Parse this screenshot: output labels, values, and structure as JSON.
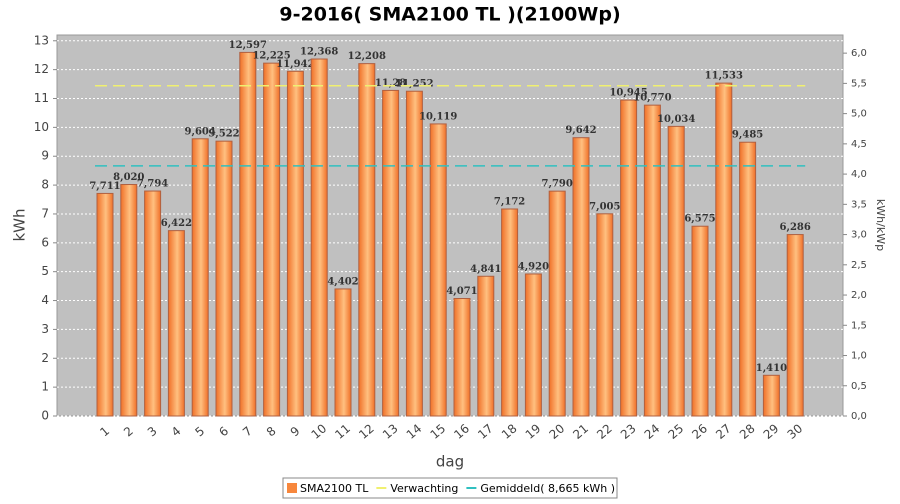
{
  "chart_data": {
    "type": "bar",
    "title": "9-2016( SMA2100 TL )(2100Wp)",
    "xlabel": "dag",
    "ylabel": "kWh",
    "y2label": "kWh/kWp",
    "categories": [
      "1",
      "2",
      "3",
      "4",
      "5",
      "6",
      "7",
      "8",
      "9",
      "10",
      "11",
      "12",
      "13",
      "14",
      "15",
      "16",
      "17",
      "18",
      "19",
      "20",
      "21",
      "22",
      "23",
      "24",
      "25",
      "26",
      "27",
      "28",
      "29",
      "30"
    ],
    "series": [
      {
        "name": "SMA2100 TL",
        "color": "#f7873c",
        "values": [
          7.711,
          8.02,
          7.794,
          6.422,
          9.604,
          9.522,
          12.597,
          12.225,
          11.942,
          12.368,
          4.402,
          12.208,
          11.28,
          11.252,
          10.119,
          4.071,
          4.841,
          7.172,
          4.92,
          7.79,
          9.642,
          7.005,
          10.945,
          10.77,
          10.034,
          6.575,
          11.533,
          9.485,
          1.41,
          6.286
        ],
        "value_labels": [
          "7,711",
          "8,020",
          "7,794",
          "6,422",
          "9,604",
          "9,522",
          "12,597",
          "12,225",
          "11,942",
          "12,368",
          "4,402",
          "12,208",
          "11,28",
          "11,252",
          "10,119",
          "4,071",
          "4,841",
          "7,172",
          "4,920",
          "7,790",
          "9,642",
          "7,005",
          "10,945",
          "10,770",
          "10,034",
          "6,575",
          "11,533",
          "9,485",
          "1,410",
          "6,286"
        ]
      }
    ],
    "reference_lines": [
      {
        "name": "Verwachting",
        "color": "#f0f070",
        "value": 11.44
      },
      {
        "name": "Gemiddeld( 8,665 kWh )",
        "color": "#30c0c0",
        "value": 8.665
      }
    ],
    "ylim": [
      0,
      13.2
    ],
    "yticks": [
      0,
      1,
      2,
      3,
      4,
      5,
      6,
      7,
      8,
      9,
      10,
      11,
      12,
      13
    ],
    "y2lim": [
      0,
      6.3
    ],
    "y2ticks": [
      {
        "value": 0,
        "label": "0,0"
      },
      {
        "value": 0.5,
        "label": "0,5"
      },
      {
        "value": 1,
        "label": "1,0"
      },
      {
        "value": 1.5,
        "label": "1,5"
      },
      {
        "value": 2,
        "label": "2,0"
      },
      {
        "value": 2.5,
        "label": "2,5"
      },
      {
        "value": 3,
        "label": "3,0"
      },
      {
        "value": 3.5,
        "label": "3,5"
      },
      {
        "value": 4,
        "label": "4,0"
      },
      {
        "value": 4.5,
        "label": "4,5"
      },
      {
        "value": 5,
        "label": "5,0"
      },
      {
        "value": 5.5,
        "label": "5,5"
      },
      {
        "value": 6,
        "label": "6,0"
      }
    ],
    "grid": true
  }
}
